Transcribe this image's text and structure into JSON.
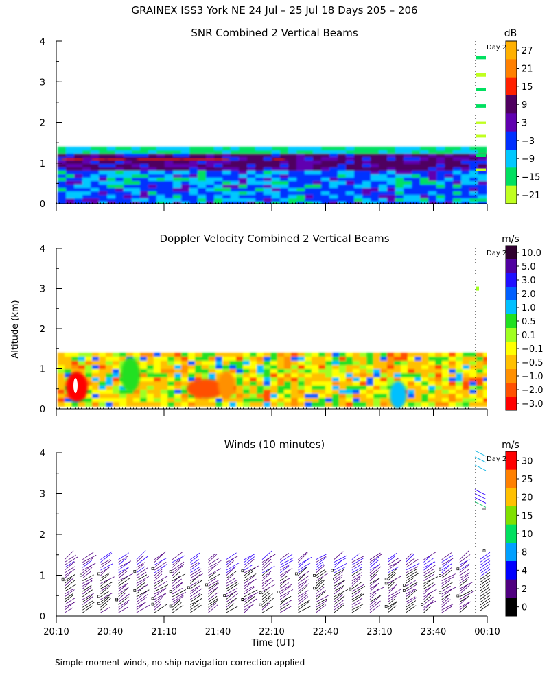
{
  "main_title": "GRAINEX ISS3 York NE  24 Jul – 25 Jul 18 Days 205 – 206",
  "shared": {
    "ylabel": "Altitude (km)",
    "xlabel": "Time (UT)",
    "x_ticks": [
      "20:10",
      "20:40",
      "21:10",
      "21:40",
      "22:10",
      "22:40",
      "23:10",
      "23:40",
      "00:10"
    ],
    "y_ticks": [
      "0",
      "1",
      "2",
      "3",
      "4"
    ],
    "day_marker": "Day 2"
  },
  "footnote": "Simple moment winds, no ship navigation correction applied",
  "chart_data": [
    {
      "type": "heatmap",
      "title": "SNR Combined 2 Vertical Beams",
      "ylabel": "Altitude (km)",
      "ylim": [
        0,
        4
      ],
      "x_range": [
        "20:10",
        "00:10"
      ],
      "colorbar": {
        "unit": "dB",
        "ticks": [
          "27",
          "21",
          "15",
          "9",
          "3",
          "−3",
          "−9",
          "−15",
          "−21"
        ],
        "colors": [
          "#ffb000",
          "#ff8000",
          "#ff2000",
          "#500060",
          "#6000b0",
          "#0030ff",
          "#00c8ff",
          "#00e060",
          "#c0ff20"
        ]
      },
      "coverage_top_km": 1.4,
      "bright_layer_km": [
        0.9,
        1.2
      ],
      "day_marker": "Day 2"
    },
    {
      "type": "heatmap",
      "title": "Doppler Velocity Combined 2 Vertical Beams",
      "ylabel": "Altitude (km)",
      "ylim": [
        0,
        4
      ],
      "x_range": [
        "20:10",
        "00:10"
      ],
      "colorbar": {
        "unit": "m/s",
        "ticks": [
          "10.0",
          "5.0",
          "3.0",
          "2.0",
          "1.0",
          "0.5",
          "0.1",
          "−0.1",
          "−0.5",
          "−1.0",
          "−2.0",
          "−3.0"
        ],
        "colors": [
          "#300030",
          "#5000a0",
          "#2010ff",
          "#0060ff",
          "#00c0ff",
          "#20e020",
          "#a0ff20",
          "#ffff00",
          "#ffc000",
          "#ff9000",
          "#ff5000",
          "#ff0000"
        ]
      },
      "coverage_top_km": 1.4,
      "day_marker": "Day 2"
    },
    {
      "type": "scatter",
      "title": "Winds (10 minutes)",
      "ylabel": "Altitude (km)",
      "xlabel": "Time (UT)",
      "ylim": [
        0,
        4
      ],
      "x_range": [
        "20:10",
        "00:10"
      ],
      "colorbar": {
        "unit": "m/s",
        "ticks": [
          "30",
          "25",
          "20",
          "15",
          "10",
          "8",
          "4",
          "2",
          "0"
        ],
        "colors": [
          "#ff0000",
          "#ff8000",
          "#ffc000",
          "#80e000",
          "#00e060",
          "#00a0ff",
          "#0000ff",
          "#500080",
          "#000000"
        ]
      },
      "profile_times": [
        "20:20",
        "20:30",
        "20:40",
        "20:50",
        "21:00",
        "21:10",
        "21:20",
        "21:30",
        "21:40",
        "21:50",
        "22:00",
        "22:10",
        "22:20",
        "22:30",
        "22:40",
        "22:50",
        "23:00",
        "23:10",
        "23:20",
        "23:30",
        "23:40",
        "23:50",
        "00:00"
      ],
      "profile_top_km": 1.5,
      "day_marker": "Day 2"
    }
  ]
}
